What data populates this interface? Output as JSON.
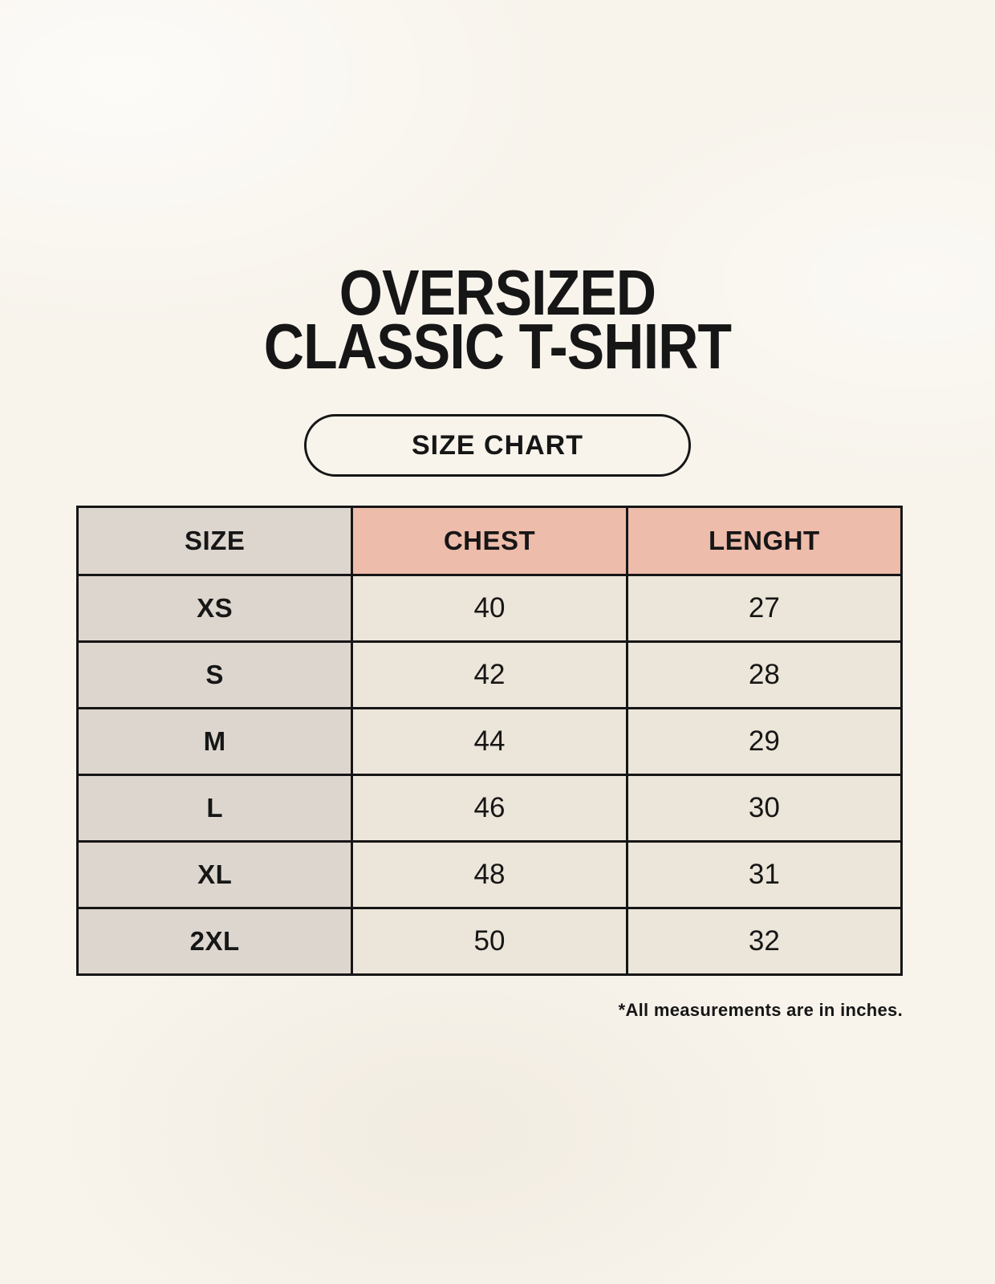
{
  "page": {
    "title_line1": "OVERSIZED",
    "title_line2": "CLASSIC T-SHIRT",
    "badge_label": "SIZE CHART",
    "footnote": "*All measurements are in inches."
  },
  "colors": {
    "page_background": "#f8f4ec",
    "header_accent_pink": "#edbcab",
    "size_column_gray": "#ddd6cf",
    "data_cell_cream": "#ece5d9",
    "border_black": "#161616",
    "text_black": "#161616"
  },
  "chart_data": {
    "type": "table",
    "title": "OVERSIZED CLASSIC T-SHIRT — SIZE CHART",
    "columns": [
      "SIZE",
      "CHEST",
      "LENGHT"
    ],
    "rows": [
      [
        "XS",
        "40",
        "27"
      ],
      [
        "S",
        "42",
        "28"
      ],
      [
        "M",
        "44",
        "29"
      ],
      [
        "L",
        "46",
        "30"
      ],
      [
        "XL",
        "48",
        "31"
      ],
      [
        "2XL",
        "50",
        "32"
      ]
    ],
    "units_note": "*All measurements are in inches.",
    "layout": "header row: first column gray, value columns pink; body: first column gray bold, value cells cream"
  }
}
